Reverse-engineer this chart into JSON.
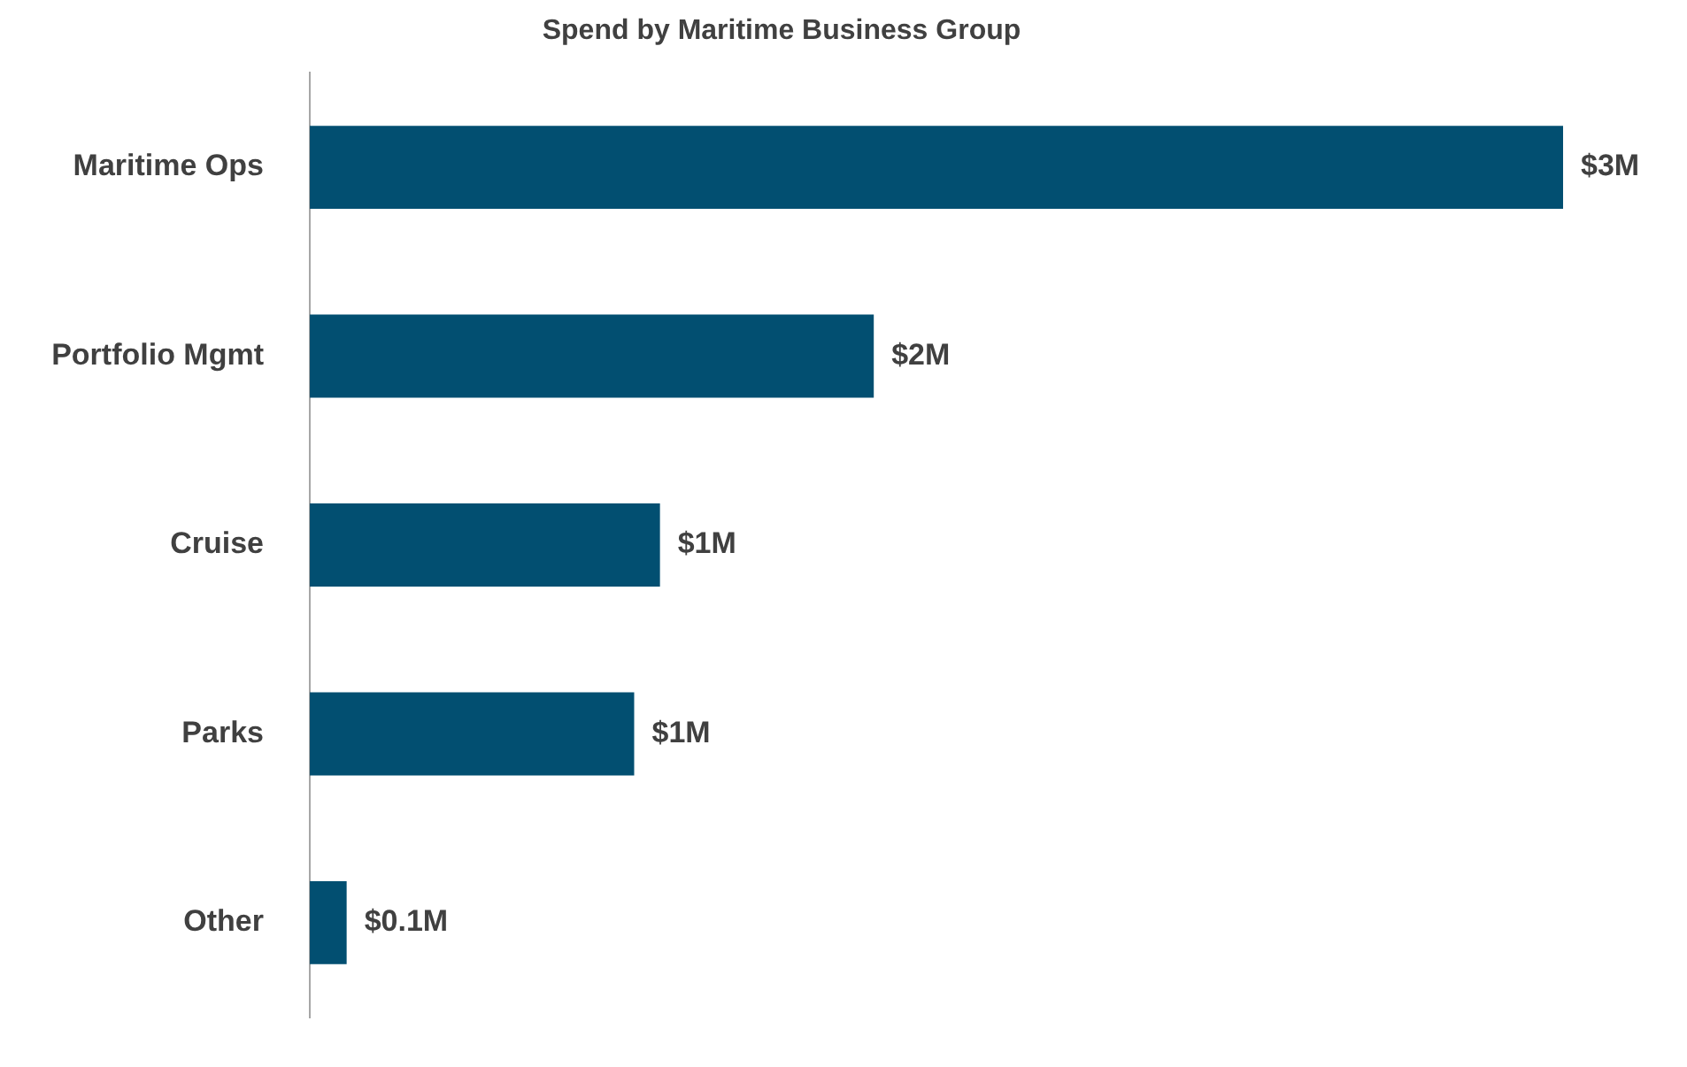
{
  "chart_data": {
    "type": "bar",
    "orientation": "horizontal",
    "title": "Spend by Maritime Business Group",
    "categories": [
      "Maritime Ops",
      "Portfolio Mgmt",
      "Cruise",
      "Parks",
      "Other"
    ],
    "values": [
      3.4,
      1.53,
      0.95,
      0.88,
      0.1
    ],
    "value_labels": [
      "$3M",
      "$2M",
      "$1M",
      "$1M",
      "$0.1M"
    ],
    "color": "#024f71",
    "legend": false,
    "tick_labels": "y"
  }
}
